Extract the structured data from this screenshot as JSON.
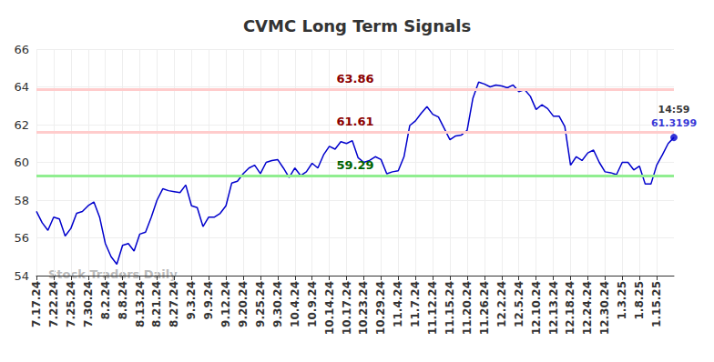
{
  "chart_data": {
    "type": "line",
    "title": "CVMC Long Term Signals",
    "categories": [
      "7.17.24",
      null,
      null,
      "7.22.24",
      null,
      null,
      "7.25.24",
      null,
      null,
      "7.30.24",
      null,
      null,
      "8.2.24",
      null,
      null,
      "8.8.24",
      null,
      null,
      "8.13.24",
      null,
      null,
      "8.21.24",
      null,
      null,
      "8.27.24",
      null,
      null,
      "9.3.24",
      null,
      null,
      "9.9.24",
      null,
      null,
      "9.12.24",
      null,
      null,
      "9.20.24",
      null,
      null,
      "9.25.24",
      null,
      null,
      "9.30.24",
      null,
      null,
      "10.4.24",
      null,
      null,
      "10.9.24",
      null,
      null,
      "10.14.24",
      null,
      null,
      "10.17.24",
      null,
      null,
      "10.23.24",
      null,
      null,
      "10.29.24",
      null,
      null,
      "11.4.24",
      null,
      null,
      "11.7.24",
      null,
      null,
      "11.12.24",
      null,
      null,
      "11.15.24",
      null,
      null,
      "11.20.24",
      null,
      null,
      "11.26.24",
      null,
      null,
      "12.2.24",
      null,
      null,
      "12.5.24",
      null,
      null,
      "12.10.24",
      null,
      null,
      "12.13.24",
      null,
      null,
      "12.18.24",
      null,
      null,
      "12.24.24",
      null,
      null,
      "12.30.24",
      null,
      null,
      "1.3.25",
      null,
      null,
      "1.8.25",
      null,
      null,
      "1.15.25",
      null,
      null,
      null
    ],
    "values": [
      57.4,
      56.8,
      56.4,
      57.1,
      57.0,
      56.1,
      56.5,
      57.3,
      57.4,
      57.7,
      57.9,
      57.1,
      55.7,
      55.0,
      54.6,
      55.6,
      55.7,
      55.3,
      56.2,
      56.3,
      57.1,
      58.0,
      58.6,
      58.5,
      58.45,
      58.4,
      58.8,
      57.7,
      57.6,
      56.6,
      57.1,
      57.1,
      57.3,
      57.7,
      58.9,
      59.0,
      59.4,
      59.7,
      59.85,
      59.4,
      60.0,
      60.1,
      60.15,
      59.7,
      59.2,
      59.7,
      59.3,
      59.5,
      59.95,
      59.7,
      60.4,
      60.85,
      60.7,
      61.1,
      61.0,
      61.15,
      60.25,
      60.0,
      60.1,
      60.3,
      60.15,
      59.4,
      59.5,
      59.55,
      60.3,
      61.95,
      62.2,
      62.6,
      62.95,
      62.55,
      62.4,
      61.8,
      61.2,
      61.4,
      61.45,
      61.7,
      63.4,
      64.25,
      64.15,
      64.0,
      64.1,
      64.05,
      63.95,
      64.1,
      63.75,
      63.85,
      63.5,
      62.8,
      63.05,
      62.85,
      62.45,
      62.45,
      61.9,
      59.85,
      60.3,
      60.1,
      60.5,
      60.65,
      60.0,
      59.5,
      59.45,
      59.35,
      60.0,
      60.0,
      59.6,
      59.8,
      58.85,
      58.85,
      59.85,
      60.4,
      61.0,
      61.3199
    ],
    "color": "#0000cc",
    "ylim": [
      54,
      66
    ],
    "yticks": [
      54,
      56,
      58,
      60,
      62,
      64,
      66
    ],
    "grid": true,
    "reference_lines": [
      {
        "value": 63.86,
        "label": "63.86",
        "color": "#ffcccc",
        "label_color": "#8b0000"
      },
      {
        "value": 61.61,
        "label": "61.61",
        "color": "#ffcccc",
        "label_color": "#8b0000"
      },
      {
        "value": 59.29,
        "label": "59.29",
        "color": "#90ee90",
        "label_color": "#006400"
      }
    ],
    "end_marker": {
      "time": "14:59",
      "value": 61.3199,
      "marker": "circle"
    },
    "watermark": "Stock Traders Daily"
  }
}
